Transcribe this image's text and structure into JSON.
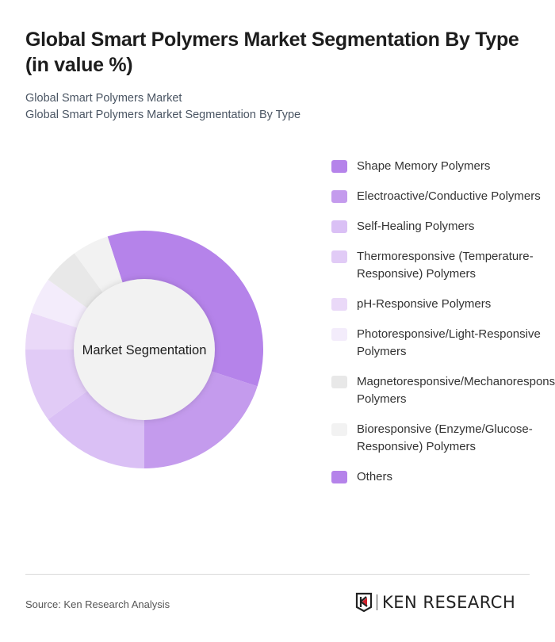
{
  "title": "Global Smart Polymers Market Segmentation By Type (in value %)",
  "subtitle_lines": [
    "Global Smart Polymers Market",
    "Global Smart Polymers Market Segmentation By Type"
  ],
  "source": "Source: Ken Research Analysis",
  "logo_text": "KEN RESEARCH",
  "chart_data": {
    "type": "pie",
    "variant": "donut",
    "center_label": "Market Segmentation",
    "legend_position": "right",
    "categories": [
      "Shape Memory Polymers",
      "Electroactive/Conductive Polymers",
      "Self-Healing Polymers",
      "Thermoresponsive (Temperature-Responsive) Polymers",
      "pH-Responsive Polymers",
      "Photoresponsive/Light-Responsive Polymers",
      "Magnetoresponsive/Mechanoresponsive Polymers",
      "Bioresponsive (Enzyme/Glucose-Responsive) Polymers",
      "Others"
    ],
    "values": [
      35,
      20,
      15,
      10,
      5,
      5,
      5,
      5,
      0
    ],
    "colors": [
      "#b583ea",
      "#c49bed",
      "#dac0f5",
      "#e1cbf6",
      "#ead9f8",
      "#f3ecfb",
      "#e8e8e8",
      "#f2f2f2",
      "#b583ea"
    ]
  },
  "legend": [
    "Shape Memory Polymers",
    "Electroactive/Conductive Polymers",
    "Self-Healing Polymers",
    "Thermoresponsive (Temperature-Responsive) Polymers",
    "pH-Responsive Polymers",
    "Photoresponsive/Light-Responsive Polymers",
    "Magnetoresponsive/Mechanoresponsive Polymers",
    "Bioresponsive (Enzyme/Glucose-Responsive) Polymers",
    "Others"
  ]
}
